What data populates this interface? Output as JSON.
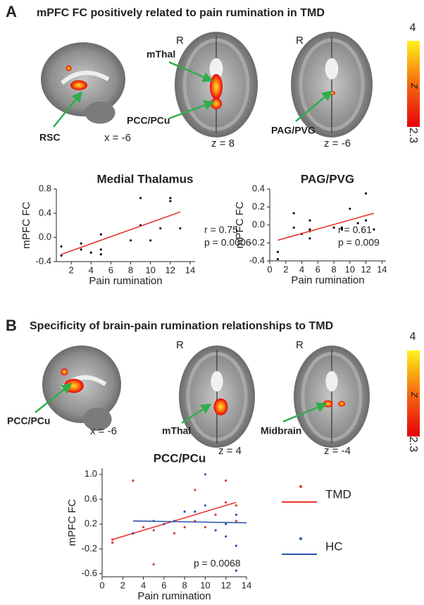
{
  "panels": [
    {
      "label": "A",
      "title": "mPFC FC positively related to pain rumination in TMD",
      "image_labels": [
        "R",
        "R",
        "mThal",
        "RSC",
        "x = -6",
        "PCC/PCu",
        "z = 8",
        "PAG/PVG",
        "z = -6"
      ],
      "colorbar": {
        "max": 4,
        "label": "z",
        "min": 2.3
      }
    },
    {
      "label": "B",
      "title": "Specificity of brain-pain rumination relationships to TMD",
      "image_labels": [
        "R",
        "R",
        "PCC/PCu",
        "x = -6",
        "mThal",
        "z = 4",
        "Midbrain",
        "z = -4"
      ],
      "colorbar": {
        "max": 4,
        "label": "z",
        "min": 2.3
      }
    }
  ],
  "chart_data": [
    {
      "type": "scatter",
      "title": "Medial Thalamus",
      "x_label": "Pain rumination",
      "y_label": "mPFC FC",
      "xlim": [
        0.5,
        14.5
      ],
      "xticks": [
        2,
        4,
        6,
        8,
        10,
        12,
        14
      ],
      "ylim": [
        -0.4,
        0.8
      ],
      "yticks": [
        0.8,
        0.4,
        {
          "value": 0,
          "label": "0.0"
        },
        -0.4
      ],
      "series": [
        {
          "color": "#111111",
          "fit_color": "#e8362e",
          "x": [
            1,
            1,
            3,
            3,
            4,
            5,
            5,
            5,
            8,
            9,
            9,
            10,
            11,
            12,
            12,
            13
          ],
          "values": [
            -0.3,
            -0.15,
            -0.1,
            -0.2,
            -0.25,
            -0.28,
            -0.2,
            0.05,
            -0.05,
            0.65,
            0.2,
            -0.05,
            0.15,
            0.65,
            0.6,
            0.15
          ],
          "fit": {
            "x": [
              1,
              13
            ],
            "values": [
              -0.28,
              0.42
            ]
          }
        }
      ],
      "annotations": [
        "r = 0.75",
        "p = 0.0006"
      ]
    },
    {
      "type": "scatter",
      "title": "PAG/PVG",
      "x_label": "Pain rumination",
      "y_label": "mPFC FC",
      "xlim": [
        0,
        14.5
      ],
      "xticks": [
        0,
        2,
        4,
        6,
        8,
        10,
        12,
        14
      ],
      "ylim": [
        -0.4,
        0.4
      ],
      "yticks": [
        0.4,
        0.2,
        {
          "value": 0,
          "label": "0.0"
        },
        -0.2,
        -0.4
      ],
      "series": [
        {
          "color": "#111111",
          "fit_color": "#e8362e",
          "x": [
            1,
            1,
            3,
            3,
            4,
            5,
            5,
            5,
            5,
            8,
            9,
            9,
            10,
            11,
            12,
            12,
            13
          ],
          "values": [
            -0.3,
            -0.38,
            0.13,
            -0.03,
            -0.1,
            -0.05,
            -0.07,
            -0.15,
            0.05,
            -0.03,
            -0.03,
            -0.05,
            0.18,
            0.02,
            0.35,
            0.05,
            -0.05
          ],
          "fit": {
            "x": [
              1,
              13
            ],
            "values": [
              -0.17,
              0.13
            ]
          }
        }
      ],
      "annotations": [
        "r = 0.61",
        "p = 0.009"
      ]
    },
    {
      "type": "scatter",
      "title": "PCC/PCu",
      "x_label": "Pain rumination",
      "y_label": "mPFC FC",
      "xlim": [
        0,
        14
      ],
      "xticks": [
        0,
        2,
        4,
        6,
        8,
        10,
        12,
        14
      ],
      "ylim": [
        -0.65,
        1.1
      ],
      "yticks": [
        {
          "value": 1,
          "label": "1.0"
        },
        0.6,
        0.2,
        -0.2,
        -0.6
      ],
      "legend": "right",
      "series": [
        {
          "name": "TMD",
          "color": "#d93a2b",
          "fit_color": "#e8362e",
          "x": [
            1,
            1,
            3,
            3,
            4,
            5,
            5,
            7,
            8,
            9,
            9,
            10,
            11,
            12,
            12,
            13,
            13
          ],
          "values": [
            -0.1,
            -0.05,
            0.9,
            0.05,
            0.15,
            -0.45,
            0.1,
            0.05,
            0.15,
            0.25,
            0.75,
            0.15,
            0.35,
            0.55,
            0.9,
            0.25,
            0.5
          ],
          "fit": {
            "x": [
              1,
              13
            ],
            "values": [
              -0.05,
              0.55
            ]
          }
        },
        {
          "name": "HC",
          "color": "#2c55a8",
          "fit_color": "#2c55a8",
          "x": [
            3,
            5,
            6,
            7,
            8,
            9,
            10,
            10,
            11,
            12,
            12,
            13,
            13,
            13
          ],
          "values": [
            0.05,
            0.25,
            0.2,
            0.25,
            0.4,
            0.4,
            1,
            0.5,
            0.1,
            0,
            0.2,
            -0.15,
            0.35,
            -0.55
          ],
          "fit": {
            "x": [
              3,
              14
            ],
            "values": [
              0.25,
              0.22
            ]
          }
        }
      ],
      "annotations": [
        "p = 0.0068"
      ]
    }
  ]
}
